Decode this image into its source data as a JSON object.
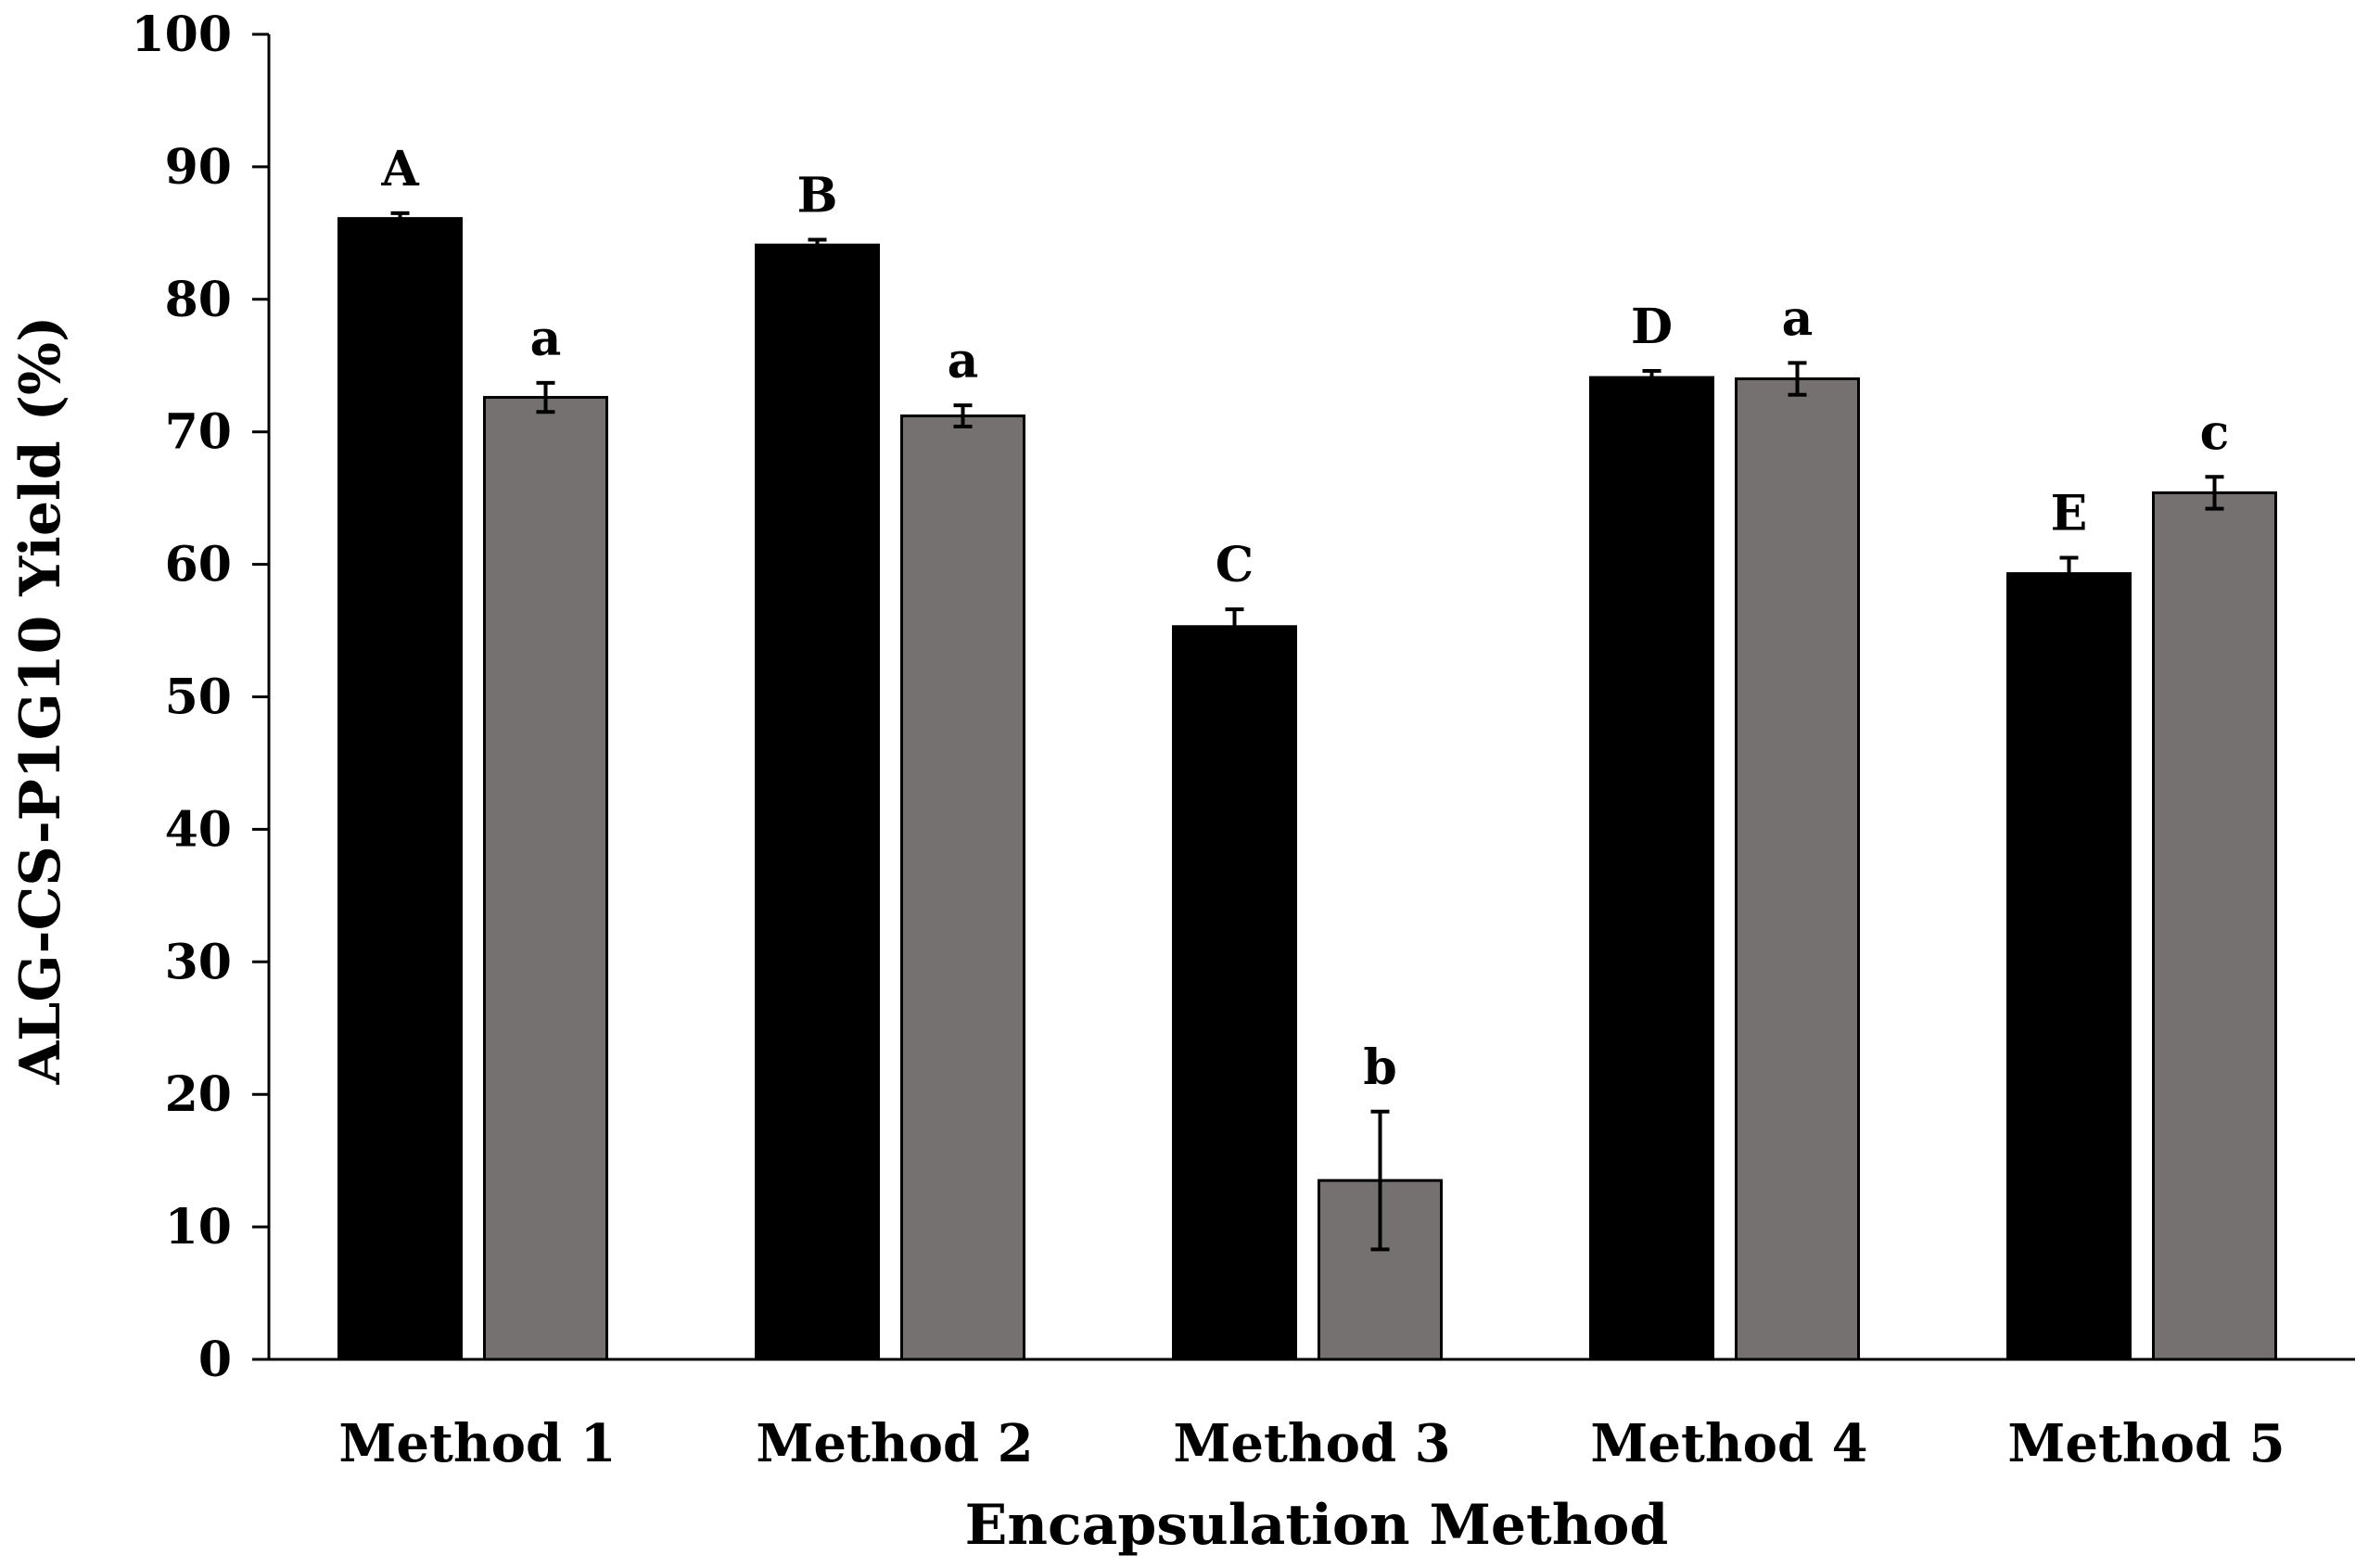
{
  "chart_data": {
    "type": "bar",
    "title": "",
    "xlabel": "Encapsulation Method",
    "ylabel": "ALG-CS-P1G10 Yield (%)",
    "ylim": [
      0,
      100
    ],
    "yticks": [
      "0",
      "10",
      "20",
      "30",
      "40",
      "50",
      "60",
      "70",
      "80",
      "90",
      "100"
    ],
    "grid": false,
    "legend": "none",
    "categories": [
      "Method 1",
      "Method 2",
      "Method 3",
      "Method 4",
      "Method 5"
    ],
    "series": [
      {
        "name": "series-1",
        "color": "#000000",
        "values": [
          86.1,
          84.1,
          55.3,
          74.1,
          59.3
        ],
        "errors": [
          0.4,
          0.4,
          1.3,
          0.5,
          1.2
        ],
        "labels": [
          "A",
          "B",
          "C",
          "D",
          "E"
        ]
      },
      {
        "name": "series-2",
        "color": "#747170",
        "values": [
          72.6,
          71.2,
          13.5,
          74.0,
          65.4
        ],
        "errors": [
          1.1,
          0.8,
          5.2,
          1.2,
          1.2
        ],
        "labels": [
          "a",
          "a",
          "b",
          "a",
          "c"
        ]
      }
    ]
  }
}
